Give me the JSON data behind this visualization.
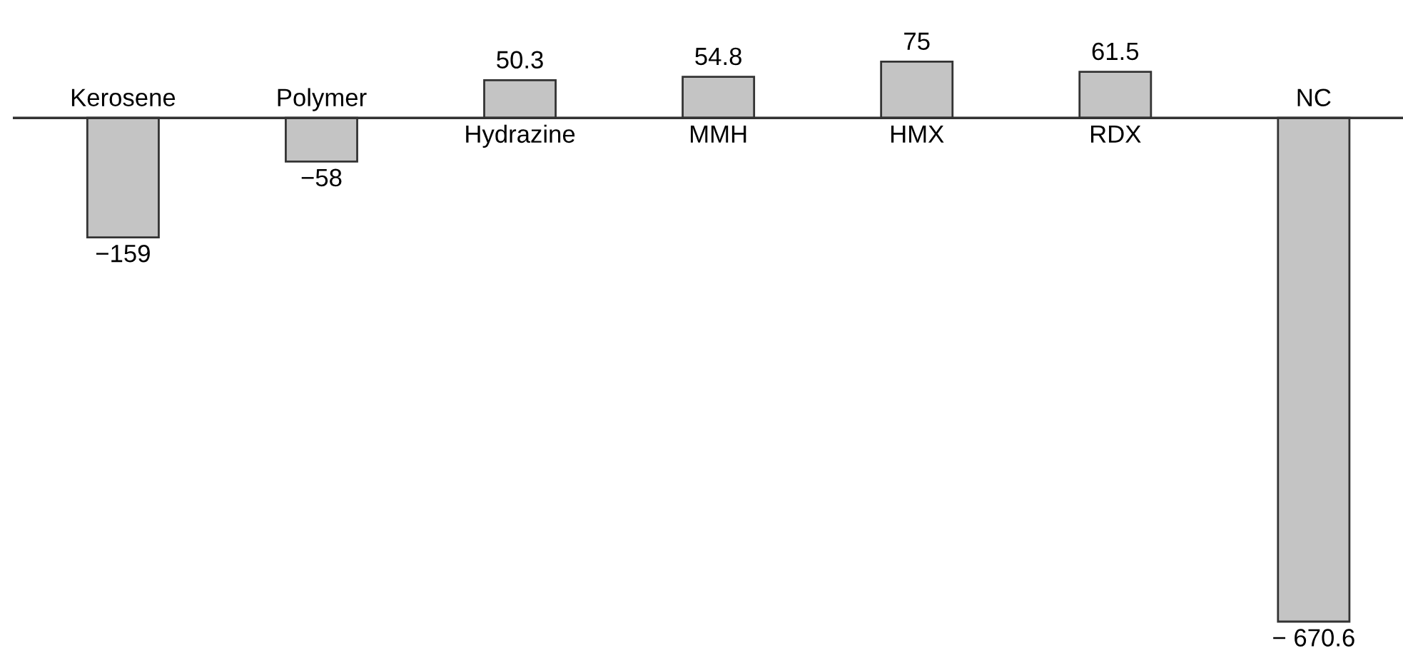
{
  "chart_data": {
    "type": "bar",
    "categories": [
      "Kerosene",
      "Polymer",
      "Hydrazine",
      "MMH",
      "HMX",
      "RDX",
      "NC"
    ],
    "values": [
      -159,
      -58,
      50.3,
      54.8,
      75,
      61.5,
      -670.6
    ],
    "value_labels": [
      "−159",
      "−58",
      "50.3",
      "54.8",
      "75",
      "61.5",
      "− 670.6"
    ],
    "color": "#c4c4c4"
  }
}
